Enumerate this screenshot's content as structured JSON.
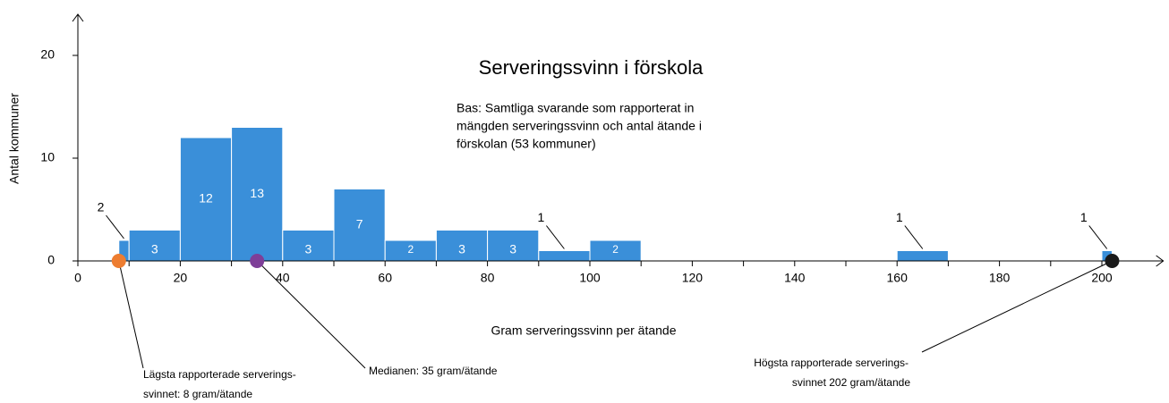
{
  "chart_data": {
    "type": "histogram",
    "title": "Serveringssvinn i förskola",
    "subtitle": [
      "Bas: Samtliga svarande som rapporterat in",
      "mängden serveringssvinn och antal ätande i",
      "förskolan (53 kommuner)"
    ],
    "x_label": "Gram serveringssvinn per ätande",
    "y_label": "Antal kommuner",
    "bins": [
      8,
      10,
      20,
      30,
      40,
      50,
      60,
      70,
      80,
      90,
      100,
      110,
      120,
      130,
      140,
      150,
      160,
      170,
      180,
      190,
      200,
      202
    ],
    "values": [
      2,
      3,
      12,
      13,
      3,
      7,
      2,
      3,
      3,
      1,
      2,
      0,
      0,
      0,
      0,
      0,
      1,
      0,
      0,
      0,
      1
    ],
    "color": "#3a8fd9",
    "xlim": [
      0,
      212
    ],
    "ylim": [
      0,
      24
    ],
    "xticks": [
      0,
      20,
      40,
      60,
      80,
      100,
      120,
      140,
      160,
      180,
      200
    ],
    "yticks": [
      0,
      10,
      20
    ],
    "markers": [
      {
        "x": 8,
        "color": "#ed7d31",
        "label": [
          "Lägsta rapporterade serverings-",
          "svinnet: 8 gram/ätande"
        ]
      },
      {
        "x": 35,
        "color": "#7e3f98",
        "label": [
          "Medianen: 35 gram/ätande"
        ]
      },
      {
        "x": 202,
        "color": "#1a1a1a",
        "label": [
          "Högsta rapporterade serverings-",
          "svinnet 202 gram/ätande"
        ]
      }
    ]
  }
}
